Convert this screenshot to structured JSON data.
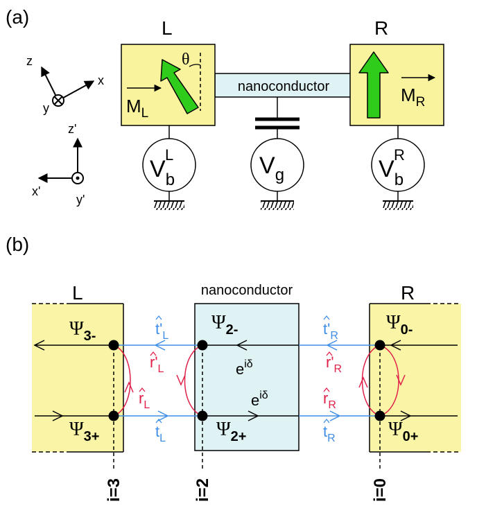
{
  "panel_a": {
    "label": "(a)",
    "left_label": "L",
    "right_label": "R",
    "theta": "θ",
    "nanoconductor": "nanoconductor",
    "mag_left": {
      "main": "M",
      "sub": "L"
    },
    "mag_right": {
      "main": "M",
      "sub": "R"
    },
    "axes1": {
      "z": "z",
      "x": "x",
      "y": "y"
    },
    "axes2": {
      "z": "z'",
      "x": "x'",
      "y": "y'"
    },
    "source_left": {
      "main": "V",
      "sub": "b",
      "sup": "L"
    },
    "source_gate": {
      "main": "V",
      "sub": "g"
    },
    "source_right": {
      "main": "V",
      "sub": "b",
      "sup": "R"
    }
  },
  "panel_b": {
    "label": "(b)",
    "left_label": "L",
    "right_label": "R",
    "nanoconductor": "nanoconductor",
    "psi": {
      "p3m": {
        "main": "Ψ",
        "sub": "3-"
      },
      "p3p": {
        "main": "Ψ",
        "sub": "3+"
      },
      "p2m": {
        "main": "Ψ",
        "sub": "2-"
      },
      "p2p": {
        "main": "Ψ",
        "sub": "2+"
      },
      "p0m": {
        "main": "Ψ",
        "sub": "0-"
      },
      "p0p": {
        "main": "Ψ",
        "sub": "0+"
      }
    },
    "phase": {
      "main": "e",
      "sup": "iδ"
    },
    "t_L_prime": {
      "main": "t'",
      "sub": "L"
    },
    "t_L": {
      "main": "t",
      "sub": "L"
    },
    "t_R_prime": {
      "main": "t'",
      "sub": "R"
    },
    "t_R": {
      "main": "t",
      "sub": "R"
    },
    "r_L_prime": {
      "main": "r'",
      "sub": "L"
    },
    "r_L": {
      "main": "r",
      "sub": "L"
    },
    "r_R_prime": {
      "main": "r'",
      "sub": "R"
    },
    "r_R": {
      "main": "r",
      "sub": "R"
    },
    "sites": {
      "i3": "i=3",
      "i2": "i=2",
      "i0": "i=0"
    }
  },
  "colors": {
    "lead_fill": "#f9f39e",
    "lead_fill_b": "#faf5a6",
    "nano_fill": "#dff2f4",
    "arrow_green": "#2fcc1c",
    "transmission_blue": "#3f8ee6",
    "reflection_red": "#e0204a"
  }
}
